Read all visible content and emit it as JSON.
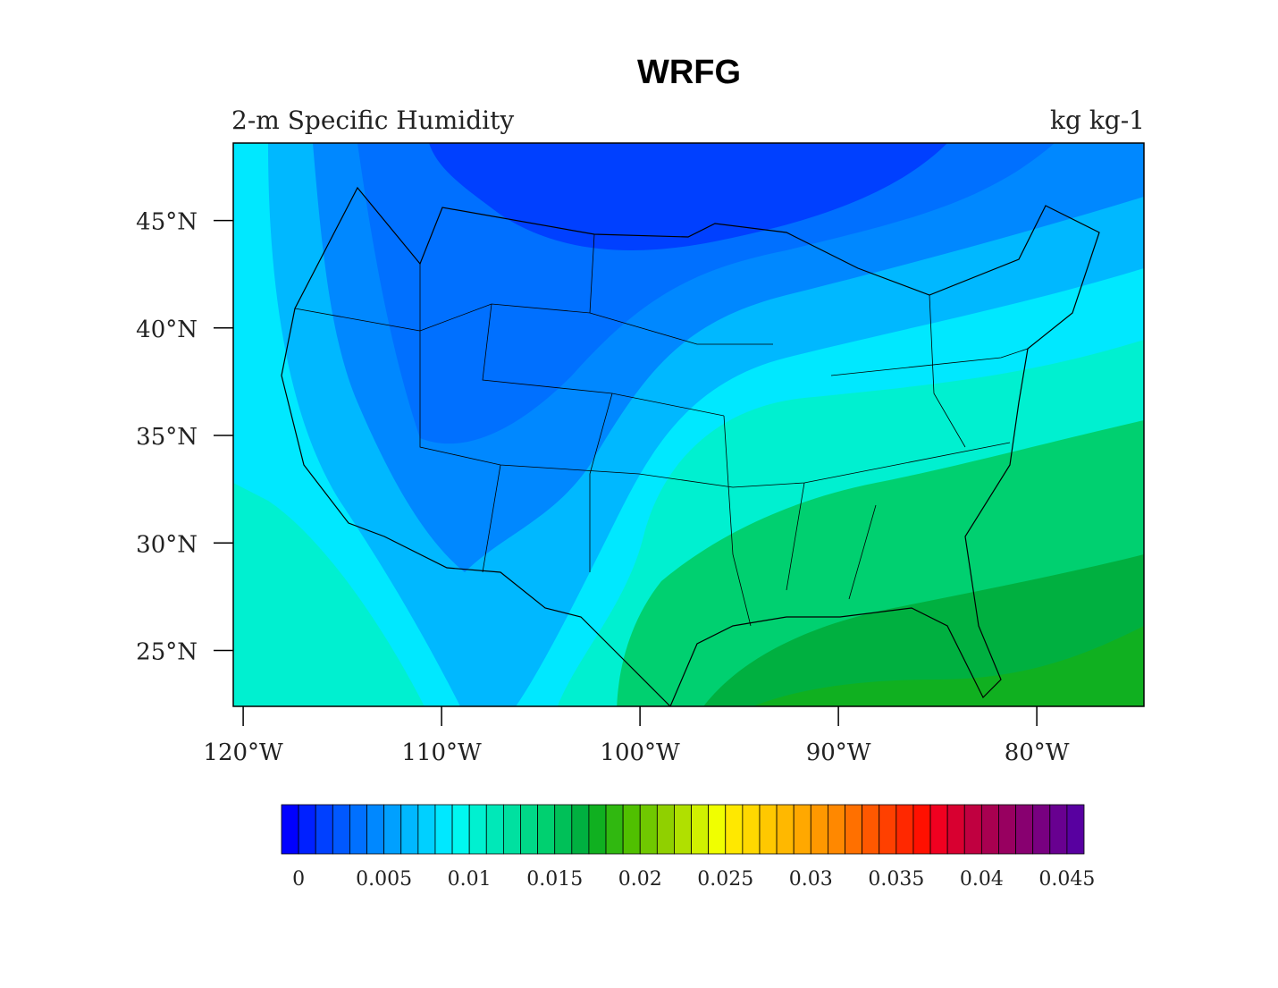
{
  "chart_data": {
    "type": "filled-contour-map",
    "title": "WRFG",
    "subtitle": "2-m Specific Humidity",
    "units": "kg kg-1",
    "xlim": [
      -120.5,
      -74.6
    ],
    "ylim": [
      22.4,
      48.6
    ],
    "xticks": [
      {
        "value": -120,
        "label": "120°W"
      },
      {
        "value": -110,
        "label": "110°W"
      },
      {
        "value": -100,
        "label": "100°W"
      },
      {
        "value": -90,
        "label": "90°W"
      },
      {
        "value": -80,
        "label": "80°W"
      }
    ],
    "yticks": [
      {
        "value": 25,
        "label": "25°N"
      },
      {
        "value": 30,
        "label": "30°N"
      },
      {
        "value": 35,
        "label": "35°N"
      },
      {
        "value": 40,
        "label": "40°N"
      },
      {
        "value": 45,
        "label": "45°N"
      }
    ],
    "colorbar": {
      "ticks": [
        0,
        0.005,
        0.01,
        0.015,
        0.02,
        0.025,
        0.03,
        0.035,
        0.04,
        0.045
      ],
      "colors": [
        "#0000ff",
        "#0020ff",
        "#0040ff",
        "#0058ff",
        "#0070ff",
        "#0088ff",
        "#00a0ff",
        "#00b8ff",
        "#00d0ff",
        "#00e8ff",
        "#00f8f0",
        "#00f0d0",
        "#00e8b8",
        "#00e0a0",
        "#00d888",
        "#00d070",
        "#00c058",
        "#00b040",
        "#10b020",
        "#30b810",
        "#50c000",
        "#70c800",
        "#90d000",
        "#b0e000",
        "#d0f000",
        "#f0ff00",
        "#ffe800",
        "#ffd800",
        "#ffc800",
        "#ffb800",
        "#ffa800",
        "#ff9800",
        "#ff8800",
        "#ff7000",
        "#ff5800",
        "#ff4000",
        "#ff2800",
        "#ff1000",
        "#f00020",
        "#d80030",
        "#c00040",
        "#a80050",
        "#980060",
        "#880070",
        "#780080",
        "#680090",
        "#5800a0"
      ]
    }
  }
}
